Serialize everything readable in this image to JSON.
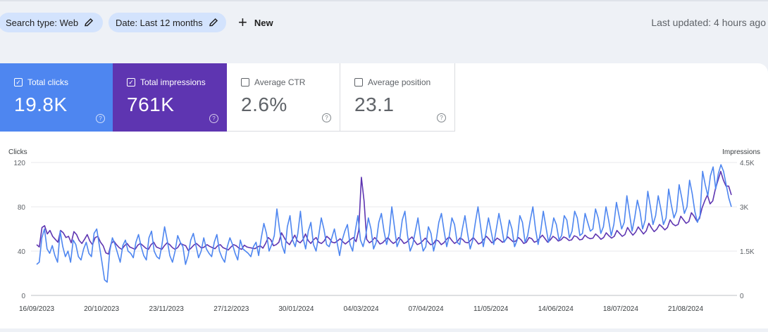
{
  "filters": {
    "search_type": "Search type: Web",
    "date": "Date: Last 12 months",
    "new_label": "New",
    "last_updated": "Last updated: 4 hours ago"
  },
  "metrics": [
    {
      "label": "Total clicks",
      "value": "19.8K",
      "checked": true,
      "color": "#4e86f0"
    },
    {
      "label": "Total impressions",
      "value": "761K",
      "checked": true,
      "color": "#5e35b1"
    },
    {
      "label": "Average CTR",
      "value": "2.6%",
      "checked": false
    },
    {
      "label": "Average position",
      "value": "23.1",
      "checked": false
    }
  ],
  "chart_data": {
    "type": "line",
    "left_axis_label": "Clicks",
    "right_axis_label": "Impressions",
    "left_ticks": [
      "120",
      "80",
      "40",
      "0"
    ],
    "right_ticks": [
      "4.5K",
      "3K",
      "1.5K",
      "0"
    ],
    "left_ylim": [
      0,
      120
    ],
    "right_ylim": [
      0,
      4500
    ],
    "x_ticks": [
      "16/09/2023",
      "20/10/2023",
      "23/11/2023",
      "27/12/2023",
      "30/01/2024",
      "04/03/2024",
      "07/04/2024",
      "11/05/2024",
      "14/06/2024",
      "18/07/2024",
      "21/08/2024"
    ],
    "x_range": [
      "2023-09-16",
      "2024-09-14"
    ],
    "series": [
      {
        "name": "Total clicks",
        "axis": "left",
        "color": "#4e86f0",
        "values": [
          28,
          30,
          52,
          60,
          42,
          38,
          45,
          36,
          30,
          58,
          44,
          35,
          40,
          30,
          50,
          46,
          35,
          32,
          42,
          48,
          38,
          35,
          56,
          60,
          45,
          30,
          14,
          12,
          40,
          52,
          46,
          38,
          30,
          45,
          50,
          40,
          38,
          34,
          48,
          55,
          44,
          36,
          32,
          52,
          58,
          40,
          35,
          33,
          46,
          62,
          50,
          36,
          30,
          40,
          54,
          48,
          44,
          28,
          36,
          50,
          56,
          45,
          34,
          40,
          52,
          42,
          38,
          35,
          48,
          55,
          40,
          34,
          30,
          44,
          52,
          46,
          38,
          32,
          50,
          42,
          40,
          38,
          35,
          44,
          48,
          36,
          52,
          65,
          56,
          40,
          46,
          54,
          78,
          60,
          45,
          38,
          62,
          72,
          50,
          44,
          56,
          76,
          52,
          42,
          58,
          66,
          46,
          40,
          54,
          70,
          60,
          46,
          44,
          52,
          60,
          48,
          36,
          50,
          58,
          64,
          46,
          40,
          58,
          72,
          50,
          44,
          54,
          70,
          60,
          42,
          48,
          66,
          74,
          58,
          46,
          56,
          80,
          62,
          44,
          50,
          68,
          76,
          54,
          40,
          46,
          58,
          70,
          52,
          40,
          44,
          62,
          56,
          40,
          50,
          66,
          74,
          58,
          44,
          54,
          70,
          64,
          48,
          46,
          60,
          72,
          56,
          42,
          50,
          66,
          80,
          62,
          44,
          56,
          70,
          58,
          46,
          60,
          74,
          62,
          48,
          52,
          68,
          60,
          44,
          50,
          72,
          66,
          48,
          54,
          68,
          80,
          60,
          46,
          58,
          76,
          62,
          48,
          56,
          70,
          64,
          50,
          54,
          72,
          68,
          52,
          58,
          76,
          70,
          54,
          56,
          74,
          66,
          58,
          60,
          78,
          70,
          56,
          62,
          80,
          68,
          54,
          64,
          84,
          72,
          60,
          66,
          90,
          74,
          58,
          70,
          86,
          76,
          60,
          68,
          94,
          80,
          64,
          72,
          90,
          78,
          64,
          70,
          96,
          82,
          70,
          76,
          100,
          88,
          74,
          80,
          104,
          92,
          76,
          66,
          72,
          112,
          100,
          90,
          108,
          116,
          96,
          110,
          118,
          112,
          100,
          88,
          80
        ]
      },
      {
        "name": "Total impressions",
        "axis": "right",
        "color": "#5e35b1",
        "values": [
          1720,
          1640,
          2300,
          2360,
          2080,
          2200,
          2000,
          1900,
          1800,
          2200,
          2120,
          1960,
          2000,
          1780,
          2160,
          2060,
          1860,
          1760,
          1900,
          2060,
          1840,
          1720,
          1960,
          2000,
          1800,
          1680,
          1440,
          1400,
          1760,
          1840,
          1720,
          1620,
          1560,
          1680,
          1760,
          1640,
          1600,
          1560,
          1700,
          1760,
          1680,
          1600,
          1560,
          1720,
          1800,
          1640,
          1600,
          1560,
          1680,
          1780,
          1720,
          1620,
          1560,
          1620,
          1760,
          1720,
          1680,
          1520,
          1600,
          1700,
          1760,
          1680,
          1600,
          1640,
          1720,
          1660,
          1620,
          1580,
          1680,
          1720,
          1620,
          1580,
          1540,
          1640,
          1720,
          1680,
          1600,
          1560,
          1700,
          1640,
          1620,
          1600,
          1580,
          1640,
          1680,
          1600,
          1760,
          1960,
          1880,
          1680,
          1720,
          1800,
          2120,
          1960,
          1800,
          1720,
          1880,
          2040,
          1840,
          1780,
          1880,
          2080,
          1860,
          1760,
          1880,
          1960,
          1800,
          1760,
          1840,
          2000,
          1920,
          1800,
          1780,
          1840,
          1920,
          1820,
          1740,
          1820,
          1900,
          1960,
          1820,
          2200,
          4000,
          3200,
          1900,
          1780,
          1840,
          1960,
          1860,
          1740,
          1780,
          1880,
          1960,
          1840,
          1760,
          1820,
          1960,
          1880,
          1760,
          1800,
          1900,
          1980,
          1840,
          1720,
          1760,
          1840,
          1940,
          1820,
          1720,
          1740,
          1880,
          1840,
          1720,
          1780,
          1900,
          1980,
          1860,
          1760,
          1820,
          1940,
          1900,
          1800,
          1780,
          1860,
          1960,
          1860,
          1740,
          1780,
          1900,
          2000,
          1900,
          1780,
          1840,
          1940,
          1880,
          1800,
          1860,
          1980,
          1900,
          1820,
          1840,
          1960,
          1880,
          1760,
          1800,
          1960,
          1920,
          1800,
          1840,
          1940,
          2040,
          1920,
          1800,
          1880,
          2000,
          1940,
          1840,
          1880,
          1980,
          1940,
          1860,
          1880,
          2020,
          1980,
          1880,
          1900,
          2040,
          1960,
          1920,
          1940,
          2080,
          2000,
          1900,
          1960,
          2120,
          2020,
          1940,
          2000,
          2200,
          2100,
          2000,
          2060,
          2300,
          2160,
          2040,
          2140,
          2320,
          2200,
          2080,
          2180,
          2440,
          2280,
          2160,
          2240,
          2400,
          2320,
          2220,
          2300,
          2560,
          2420,
          2360,
          2400,
          2680,
          2560,
          2440,
          2500,
          2800,
          2680,
          2520,
          2600,
          2960,
          3200,
          3400,
          3100,
          3200,
          3600,
          3900,
          4200,
          3900,
          3700,
          3700,
          3400
        ]
      }
    ]
  }
}
